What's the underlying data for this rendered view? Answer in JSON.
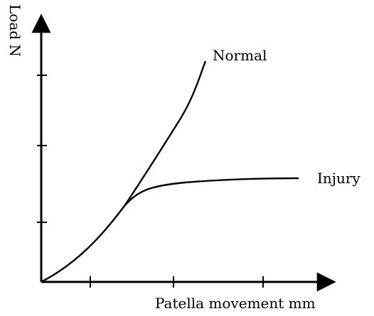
{
  "chart_data": {
    "type": "line",
    "title": "",
    "xlabel": "Patella movement mm",
    "ylabel": "Load N",
    "x_ticks": 3,
    "y_ticks": 3,
    "grid": false,
    "legend": "none",
    "series": [
      {
        "name": "Normal",
        "color": "#000000"
      },
      {
        "name": "Injury",
        "color": "#000000"
      }
    ]
  }
}
